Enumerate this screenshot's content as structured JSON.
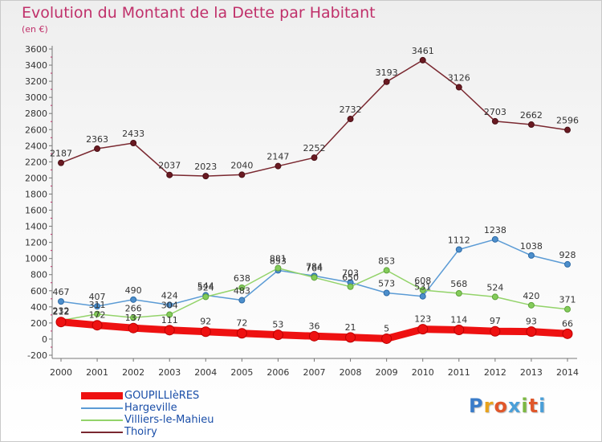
{
  "title": "Evolution du Montant de la Dette par Habitant",
  "unit_label": "(en €)",
  "logo": {
    "text": "Proxiti",
    "letters": [
      "P",
      "r",
      "o",
      "x",
      "i",
      "t",
      "i"
    ],
    "colors": [
      "#3a7cc9",
      "#e8a21c",
      "#e0572a",
      "#4a9fd8",
      "#7cb842",
      "#e0572a",
      "#4a9fd8"
    ]
  },
  "chart_data": {
    "type": "line",
    "x": [
      2000,
      2001,
      2002,
      2003,
      2004,
      2005,
      2006,
      2007,
      2008,
      2009,
      2010,
      2011,
      2012,
      2013,
      2014
    ],
    "x_tick_labels": [
      "2000",
      "2001",
      "2002",
      "2003",
      "2004",
      "2005",
      "2006",
      "2007",
      "2008",
      "2009",
      "2010",
      "2011",
      "2012",
      "2013",
      "2014"
    ],
    "ylim": [
      -200,
      3600
    ],
    "y_ticks": [
      -200,
      0,
      200,
      400,
      600,
      800,
      1000,
      1200,
      1400,
      1600,
      1800,
      2000,
      2200,
      2400,
      2600,
      2800,
      3000,
      3200,
      3400,
      3600
    ],
    "grid": false,
    "legend_position": "bottom-left",
    "series": [
      {
        "name": "Thoiry",
        "color": "#7a2830",
        "values": [
          2187,
          2363,
          2433,
          2037,
          2023,
          2040,
          2147,
          2252,
          2732,
          3193,
          3461,
          3126,
          2703,
          2662,
          2596
        ]
      },
      {
        "name": "Hargeville",
        "color": "#5b9bd5",
        "values": [
          467,
          407,
          490,
          424,
          544,
          483,
          853,
          784,
          703,
          573,
          531,
          1112,
          1238,
          1038,
          928
        ]
      },
      {
        "name": "Villiers-le-Mahieu",
        "color": "#93d36a",
        "values": [
          232,
          311,
          266,
          304,
          524,
          638,
          881,
          764,
          650,
          853,
          608,
          568,
          524,
          420,
          371
        ]
      },
      {
        "name": "GOUPILLIèRES",
        "color": "#ee1111",
        "values": [
          212,
          172,
          137,
          111,
          92,
          72,
          53,
          36,
          21,
          5,
          123,
          114,
          97,
          93,
          66
        ]
      }
    ]
  }
}
